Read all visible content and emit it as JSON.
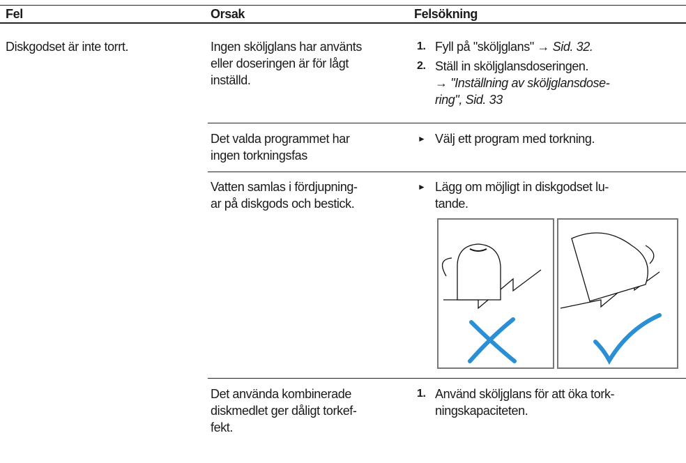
{
  "table": {
    "header": [
      "Fel",
      "Orsak",
      "Felsökning"
    ],
    "rows": [
      {
        "fault": "Diskgodset är inte torrt.",
        "causes": [
          {
            "cause": [
              "Ingen sköljglans har använts",
              "eller doseringen är för lågt",
              "inställd."
            ],
            "remedy": [
              {
                "marker": "1.",
                "text": "Fyll på \"sköljglans\" →",
                "ref": "Sid. 32."
              },
              {
                "marker": "2.",
                "text": "Ställ in sköljglansdoseringen.",
                "ref_lines": [
                  "→ \"Inställning av sköljglansdose-",
                  "ring\", Sid. 33"
                ]
              }
            ]
          },
          {
            "cause": [
              "Det valda programmet har",
              "ingen torkningsfas"
            ],
            "remedy": [
              {
                "marker": "►",
                "lines": [
                  "Välj ett program med torkning."
                ]
              }
            ]
          },
          {
            "cause": [
              "Vatten samlas i fördjupning-",
              "ar på diskgods och bestick."
            ],
            "remedy": [
              {
                "marker": "►",
                "lines": [
                  "Lägg om möjligt in diskgodset lu-",
                  "tande."
                ]
              }
            ]
          },
          {
            "cause": [
              "Det använda kombinerade",
              "diskmedlet ger dåligt torkef-",
              "fekt."
            ],
            "remedy": [
              {
                "marker": "1.",
                "lines": [
                  "Använd sköljglans för att öka tork-",
                  "ningskapaciteten."
                ]
              }
            ]
          }
        ]
      }
    ]
  }
}
